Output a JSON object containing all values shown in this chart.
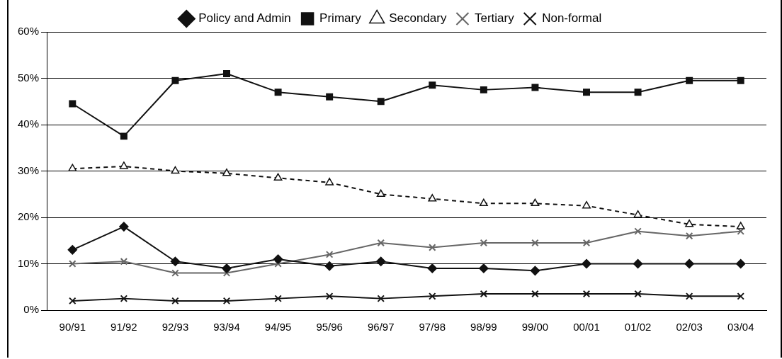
{
  "chart_data": {
    "type": "line",
    "categories": [
      "90/91",
      "91/92",
      "92/93",
      "93/94",
      "94/95",
      "95/96",
      "96/97",
      "97/98",
      "98/99",
      "99/00",
      "00/01",
      "01/02",
      "02/03",
      "03/04"
    ],
    "series": [
      {
        "name": "Policy and Admin",
        "color": "#111111",
        "marker": "diamond",
        "values": [
          13,
          18,
          10.5,
          9,
          11,
          9.5,
          10.5,
          9,
          9,
          8.5,
          10,
          10,
          10,
          10
        ]
      },
      {
        "name": "Primary",
        "color": "#111111",
        "marker": "square",
        "values": [
          44.5,
          37.5,
          49.5,
          51,
          47,
          46,
          45,
          48.5,
          47.5,
          48,
          47,
          47,
          49.5,
          49.5
        ]
      },
      {
        "name": "Secondary",
        "color": "#111111",
        "marker": "triangle",
        "line_style": "dashed",
        "values": [
          30.5,
          31,
          30,
          29.5,
          28.5,
          27.5,
          25,
          24,
          23,
          23,
          22.5,
          20.5,
          18.5,
          18
        ]
      },
      {
        "name": "Tertiary",
        "color": "#666666",
        "marker": "cross",
        "values": [
          10,
          10.5,
          8,
          8,
          10,
          12,
          14.5,
          13.5,
          14.5,
          14.5,
          14.5,
          17,
          16,
          17
        ]
      },
      {
        "name": "Non-formal",
        "color": "#111111",
        "marker": "cross",
        "values": [
          2,
          2.5,
          2,
          2,
          2.5,
          3,
          2.5,
          3,
          3.5,
          3.5,
          3.5,
          3.5,
          3,
          3
        ]
      }
    ],
    "ylim": [
      0,
      60
    ],
    "yticks": [
      {
        "value": 0,
        "label": "0%"
      },
      {
        "value": 10,
        "label": "10%"
      },
      {
        "value": 20,
        "label": "20%"
      },
      {
        "value": 30,
        "label": "30%"
      },
      {
        "value": 40,
        "label": "40%"
      },
      {
        "value": 50,
        "label": "50%"
      },
      {
        "value": 60,
        "label": "60%"
      }
    ],
    "grid": "y",
    "legend": "top"
  }
}
